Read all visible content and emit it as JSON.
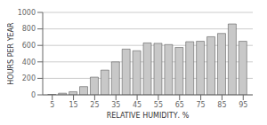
{
  "chart_data": {
    "type": "bar",
    "x": [
      5,
      10,
      15,
      20,
      25,
      30,
      35,
      40,
      45,
      50,
      55,
      60,
      65,
      70,
      75,
      80,
      85,
      90,
      95
    ],
    "values": [
      5,
      20,
      38,
      100,
      215,
      300,
      400,
      555,
      535,
      630,
      625,
      610,
      575,
      645,
      650,
      705,
      745,
      860,
      650
    ],
    "xlabel": "RELATIVE HUMIDITY, %",
    "ylabel": "HOURS PER YEAR",
    "xlim": [
      0.5,
      99.5
    ],
    "xticks": [
      5,
      15,
      25,
      35,
      45,
      55,
      65,
      75,
      85,
      95
    ],
    "ylim": [
      0,
      1000
    ],
    "yticks": [
      0,
      200,
      400,
      600,
      800,
      1000
    ],
    "color": "#c8c8c8",
    "grid": true
  }
}
